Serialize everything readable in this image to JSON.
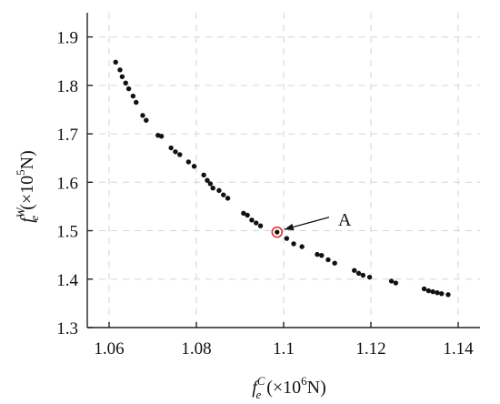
{
  "chart_data": {
    "type": "scatter",
    "title": "",
    "xlabel": {
      "base": "f",
      "sub": "e",
      "sup": "C",
      "unit_prefix": "(×10",
      "unit_exp": "6",
      "unit_suffix": "N)"
    },
    "ylabel": {
      "base": "f",
      "sub": "e",
      "sup": "W",
      "unit_prefix": "(×10",
      "unit_exp": "5",
      "unit_suffix": "N)"
    },
    "xlim": [
      1.055,
      1.145
    ],
    "ylim": [
      1.3,
      1.95
    ],
    "xticks": [
      1.06,
      1.08,
      1.1,
      1.12,
      1.14
    ],
    "xtick_labels": [
      "1.06",
      "1.08",
      "1.1",
      "1.12",
      "1.14"
    ],
    "yticks": [
      1.3,
      1.4,
      1.5,
      1.6,
      1.7,
      1.8,
      1.9
    ],
    "ytick_labels": [
      "1.3",
      "1.4",
      "1.5",
      "1.6",
      "1.7",
      "1.8",
      "1.9"
    ],
    "grid": true,
    "series": [
      {
        "color": "#111111",
        "points": [
          [
            1.0615,
            1.848
          ],
          [
            1.0625,
            1.832
          ],
          [
            1.063,
            1.818
          ],
          [
            1.0638,
            1.805
          ],
          [
            1.0645,
            1.793
          ],
          [
            1.0655,
            1.778
          ],
          [
            1.0662,
            1.765
          ],
          [
            1.0677,
            1.738
          ],
          [
            1.0685,
            1.728
          ],
          [
            1.0712,
            1.697
          ],
          [
            1.072,
            1.695
          ],
          [
            1.0742,
            1.671
          ],
          [
            1.0752,
            1.663
          ],
          [
            1.0762,
            1.657
          ],
          [
            1.0782,
            1.642
          ],
          [
            1.0795,
            1.633
          ],
          [
            1.0817,
            1.615
          ],
          [
            1.0825,
            1.604
          ],
          [
            1.0832,
            1.597
          ],
          [
            1.0838,
            1.588
          ],
          [
            1.0852,
            1.583
          ],
          [
            1.0862,
            1.574
          ],
          [
            1.0872,
            1.567
          ],
          [
            1.0908,
            1.536
          ],
          [
            1.0917,
            1.532
          ],
          [
            1.0927,
            1.522
          ],
          [
            1.0937,
            1.516
          ],
          [
            1.0947,
            1.51
          ],
          [
            1.1007,
            1.484
          ],
          [
            1.1023,
            1.473
          ],
          [
            1.1042,
            1.467
          ],
          [
            1.1077,
            1.451
          ],
          [
            1.1087,
            1.449
          ],
          [
            1.1102,
            1.44
          ],
          [
            1.1117,
            1.433
          ],
          [
            1.1162,
            1.418
          ],
          [
            1.1172,
            1.412
          ],
          [
            1.1182,
            1.408
          ],
          [
            1.1197,
            1.404
          ],
          [
            1.1247,
            1.396
          ],
          [
            1.1257,
            1.392
          ],
          [
            1.1322,
            1.38
          ],
          [
            1.1332,
            1.376
          ],
          [
            1.1342,
            1.374
          ],
          [
            1.1352,
            1.372
          ],
          [
            1.1362,
            1.37
          ],
          [
            1.1377,
            1.368
          ]
        ]
      }
    ],
    "highlight": {
      "label": "A",
      "x": 1.0985,
      "y": 1.497,
      "ring_color": "#e0302a",
      "label_x": 1.1125,
      "label_y": 1.524
    }
  }
}
